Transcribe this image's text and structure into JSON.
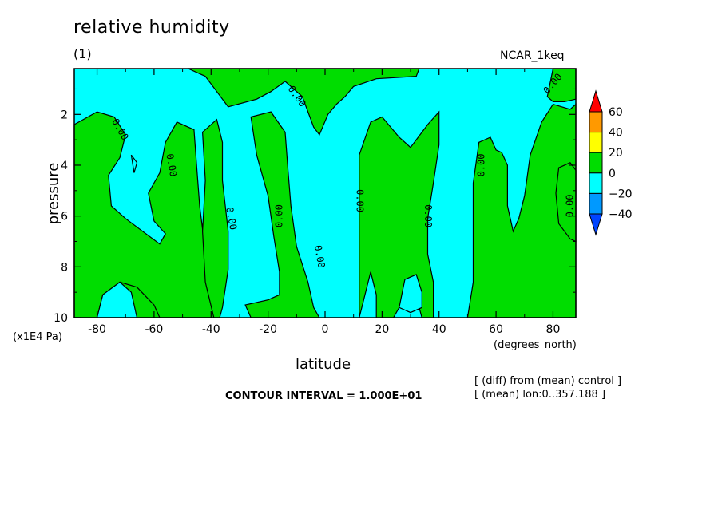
{
  "chart_data": {
    "type": "heatmap",
    "title": "relative humidity",
    "subtitle": "(1)",
    "run_name": "NCAR_1keq",
    "xlabel": "latitude",
    "x_unit": "(degrees_north)",
    "ylabel": "pressure",
    "y_unit": "(x1E4 Pa)",
    "xlim": [
      -88,
      88
    ],
    "ylim": [
      10,
      0.2
    ],
    "x_ticks": [
      -80,
      -60,
      -40,
      -20,
      0,
      20,
      40,
      60,
      80
    ],
    "y_ticks": [
      2,
      4,
      6,
      8,
      10
    ],
    "contour_interval_text": "CONTOUR INTERVAL = 1.000E+01",
    "notes": [
      "[ (diff) from (mean) control ]",
      "[ (mean) lon:0..357.188 ]"
    ],
    "colorbar": {
      "labels": [
        "60",
        "40",
        "20",
        "0",
        "−20",
        "−40"
      ],
      "levels": [
        60,
        40,
        20,
        0,
        -20,
        -40
      ],
      "colors": [
        "#ff0000",
        "#ff9900",
        "#ffff00",
        "#00dd00",
        "#00ffff",
        "#0099ff",
        "#0044ff"
      ]
    },
    "contour_label": "0.00",
    "positive_color": "#00dd00",
    "negative_color": "#00ffff",
    "positive_regions_data": [
      [
        [
          -88,
          2.4
        ],
        [
          -80,
          1.9
        ],
        [
          -74,
          2.1
        ],
        [
          -70,
          2.8
        ],
        [
          -72,
          3.7
        ],
        [
          -76,
          4.4
        ],
        [
          -75,
          5.6
        ],
        [
          -70,
          6.1
        ],
        [
          -64,
          6.6
        ],
        [
          -58,
          7.1
        ],
        [
          -56,
          6.7
        ],
        [
          -60,
          6.2
        ],
        [
          -62,
          5.1
        ],
        [
          -58,
          4.3
        ],
        [
          -56,
          3.1
        ],
        [
          -52,
          2.3
        ],
        [
          -46,
          2.6
        ],
        [
          -45,
          4.1
        ],
        [
          -44,
          5.6
        ],
        [
          -42,
          7.4
        ],
        [
          -40,
          9.3
        ],
        [
          -38,
          10
        ],
        [
          -88,
          10
        ],
        [
          -88,
          7.4
        ]
      ],
      [
        [
          -80,
          10
        ],
        [
          -78,
          9.1
        ],
        [
          -72,
          8.6
        ],
        [
          -66,
          8.8
        ],
        [
          -60,
          9.5
        ],
        [
          -58,
          10
        ]
      ],
      [
        [
          -43,
          2.7
        ],
        [
          -38,
          2.2
        ],
        [
          -36,
          3.1
        ],
        [
          -36,
          4.6
        ],
        [
          -34,
          6.6
        ],
        [
          -34,
          8.1
        ],
        [
          -36,
          9.6
        ],
        [
          -37,
          10
        ],
        [
          -39,
          10
        ],
        [
          -42,
          8.6
        ],
        [
          -43,
          6.6
        ],
        [
          -42,
          4.6
        ]
      ],
      [
        [
          -48,
          0.2
        ],
        [
          -42,
          0.5
        ],
        [
          -38,
          1.1
        ],
        [
          -34,
          1.7
        ],
        [
          -24,
          1.4
        ],
        [
          -19,
          1.1
        ],
        [
          -14,
          0.7
        ],
        [
          -8,
          1.3
        ],
        [
          -4,
          2.5
        ],
        [
          -2,
          2.8
        ],
        [
          1,
          2.0
        ],
        [
          4,
          1.6
        ],
        [
          7,
          1.3
        ],
        [
          10,
          0.9
        ],
        [
          18,
          0.6
        ],
        [
          32,
          0.5
        ],
        [
          33,
          0.2
        ]
      ],
      [
        [
          -26,
          2.1
        ],
        [
          -19,
          1.9
        ],
        [
          -14,
          2.7
        ],
        [
          -13,
          4.2
        ],
        [
          -12,
          5.6
        ],
        [
          -10,
          7.2
        ],
        [
          -6,
          8.6
        ],
        [
          -4,
          9.6
        ],
        [
          -2,
          10
        ],
        [
          -26,
          10
        ],
        [
          -28,
          9.5
        ],
        [
          -20,
          9.3
        ],
        [
          -16,
          9.1
        ],
        [
          -16,
          8.2
        ],
        [
          -18,
          6.8
        ],
        [
          -20,
          5.2
        ],
        [
          -24,
          3.6
        ]
      ],
      [
        [
          12,
          10
        ],
        [
          12,
          7.8
        ],
        [
          12,
          5.6
        ],
        [
          12,
          3.6
        ],
        [
          16,
          2.3
        ],
        [
          20,
          2.1
        ],
        [
          26,
          2.9
        ],
        [
          30,
          3.3
        ],
        [
          36,
          2.4
        ],
        [
          40,
          1.9
        ],
        [
          40,
          3.2
        ],
        [
          38,
          4.7
        ],
        [
          36,
          6.1
        ],
        [
          36,
          7.5
        ],
        [
          38,
          8.6
        ],
        [
          38,
          10
        ],
        [
          34,
          10
        ],
        [
          32,
          9.2
        ],
        [
          30,
          9.1
        ],
        [
          26,
          9.6
        ],
        [
          24,
          10
        ],
        [
          18,
          10
        ],
        [
          18,
          9.1
        ],
        [
          16,
          8.2
        ]
      ],
      [
        [
          50,
          10
        ],
        [
          52,
          8.6
        ],
        [
          52,
          6.6
        ],
        [
          52,
          4.7
        ],
        [
          54,
          3.1
        ],
        [
          58,
          2.9
        ],
        [
          60,
          3.4
        ],
        [
          62,
          3.5
        ],
        [
          64,
          4.0
        ],
        [
          64,
          5.6
        ],
        [
          66,
          6.6
        ],
        [
          68,
          6.1
        ],
        [
          70,
          5.2
        ],
        [
          72,
          3.6
        ],
        [
          76,
          2.3
        ],
        [
          80,
          1.6
        ],
        [
          86,
          1.8
        ],
        [
          88,
          1.6
        ],
        [
          88,
          10
        ]
      ],
      [
        [
          80,
          0.2
        ],
        [
          86,
          0.2
        ],
        [
          88,
          0.2
        ],
        [
          88,
          1.4
        ],
        [
          84,
          1.5
        ],
        [
          80,
          1.5
        ],
        [
          78,
          1.3
        ]
      ],
      [
        [
          82,
          4.1
        ],
        [
          86,
          3.9
        ],
        [
          88,
          4.2
        ],
        [
          88,
          7.0
        ],
        [
          86,
          6.9
        ],
        [
          82,
          6.3
        ],
        [
          81,
          5.1
        ]
      ]
    ],
    "negative_islands_data": [
      [
        [
          -80,
          10
        ],
        [
          -78,
          9.1
        ],
        [
          -72,
          8.6
        ],
        [
          -68,
          9.0
        ],
        [
          -66,
          10
        ]
      ],
      [
        [
          26,
          9.6
        ],
        [
          28,
          8.5
        ],
        [
          32,
          8.3
        ],
        [
          34,
          9.0
        ],
        [
          34,
          9.6
        ],
        [
          30,
          9.8
        ]
      ],
      [
        [
          -68,
          3.6
        ],
        [
          -66,
          3.9
        ],
        [
          -67,
          4.3
        ]
      ]
    ]
  }
}
